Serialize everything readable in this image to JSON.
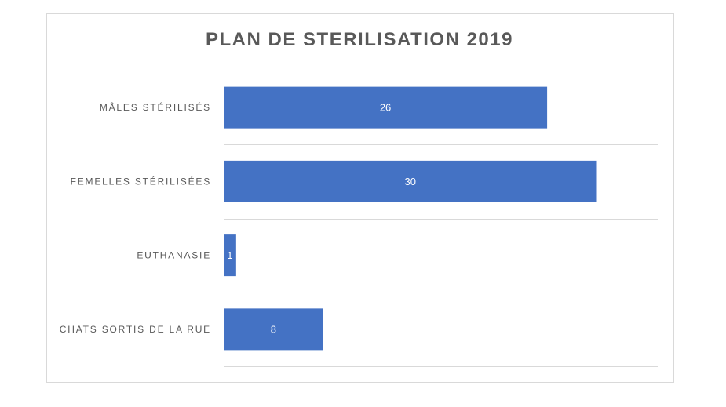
{
  "chart_data": {
    "type": "bar",
    "orientation": "horizontal",
    "title": "PLAN DE STERILISATION 2019",
    "categories": [
      "MÂLES STÉRILISÉS",
      "FEMELLES STÉRILISÉES",
      "EUTHANASIE",
      "CHATS SORTIS DE LA RUE"
    ],
    "values": [
      26,
      30,
      1,
      8
    ],
    "xlim": [
      0,
      35
    ],
    "grid": "horizontal category separators",
    "data_labels": true,
    "bar_color": "#4472c4",
    "label_color": "#595959"
  }
}
